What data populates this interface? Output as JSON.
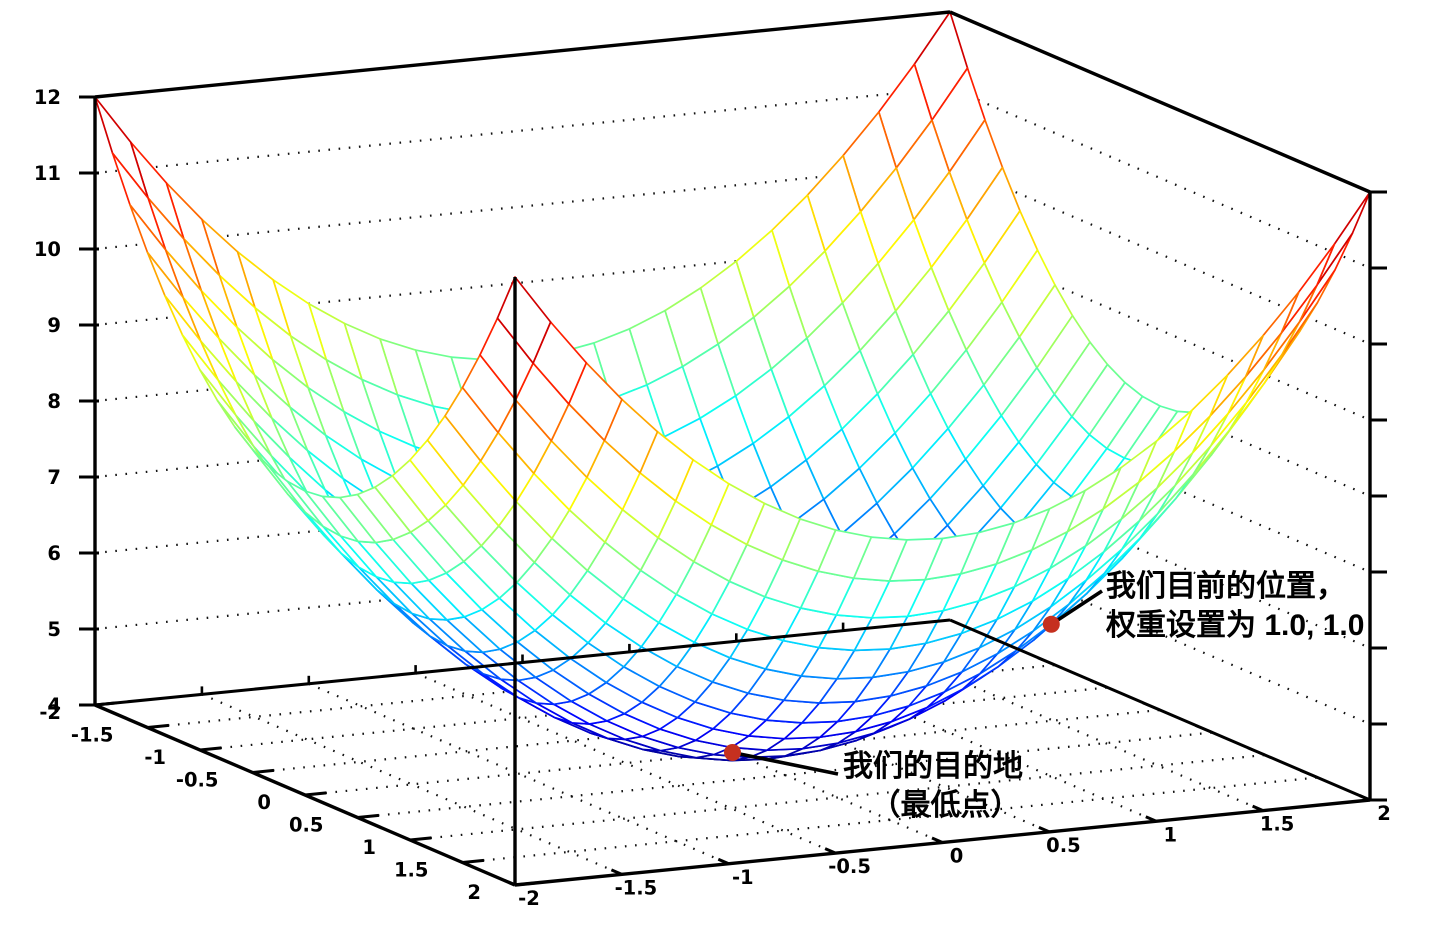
{
  "chart_data": {
    "type": "surface",
    "title": "",
    "background": "#ffffff",
    "surface": {
      "formula": "z = x^2 + y^2 + 4",
      "z_offset": 4,
      "x_range": [
        -2,
        2
      ],
      "y_range": [
        -2,
        2
      ],
      "z_range": [
        4,
        12
      ],
      "mesh_divisions": 24,
      "colormap": "jet",
      "hidden_line_removal": true
    },
    "axes": {
      "x_ticks": [
        -2,
        -1.5,
        -1,
        -0.5,
        0,
        0.5,
        1,
        1.5,
        2
      ],
      "x_tick_labels": [
        "-2",
        "-1.5",
        "-1",
        "-0.5",
        "0",
        "0.5",
        "1",
        "1.5",
        "2"
      ],
      "y_ticks": [
        -2,
        -1.5,
        -1,
        -0.5,
        0,
        0.5,
        1,
        1.5,
        2
      ],
      "y_tick_labels": [
        "-2",
        "-1.5",
        "-1",
        "-0.5",
        "0",
        "0.5",
        "1",
        "1.5",
        "2"
      ],
      "z_ticks": [
        4,
        5,
        6,
        7,
        8,
        9,
        10,
        11,
        12
      ],
      "z_tick_labels": [
        "4",
        "5",
        "6",
        "7",
        "8",
        "9",
        "10",
        "11",
        "12"
      ],
      "grid": true,
      "grid_style": "dotted",
      "axis_color": "#000000"
    },
    "points": [
      {
        "x": 1,
        "y": 1,
        "z": 6,
        "marker": "dot",
        "color": "#c5301f",
        "label_line1": "我们目前的位置，",
        "label_line2": "权重设置为 1.0, 1.0"
      },
      {
        "x": 0,
        "y": 0,
        "z": 4,
        "marker": "dot",
        "color": "#c5301f",
        "label_line1": "我们的目的地",
        "label_line2": "（最低点）"
      }
    ]
  }
}
